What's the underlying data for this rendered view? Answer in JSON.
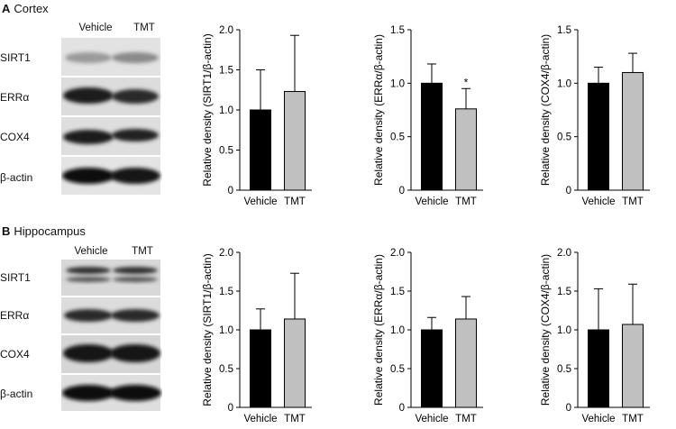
{
  "panels": [
    {
      "letter": "A",
      "title": "Cortex",
      "lanes": [
        "Vehicle",
        "TMT"
      ],
      "proteins": [
        "SIRT1",
        "ERRα",
        "COX4",
        "β-actin"
      ]
    },
    {
      "letter": "B",
      "title": "Hippocampus",
      "lanes": [
        "Vehicle",
        "TMT"
      ],
      "proteins": [
        "SIRT1",
        "ERRα",
        "COX4",
        "β-actin"
      ]
    }
  ],
  "colors": {
    "vehicle": "#000000",
    "tmt": "#c0c0c0"
  },
  "chart_data": [
    {
      "type": "bar",
      "panel": "A",
      "categories": [
        "Vehicle",
        "TMT"
      ],
      "values": [
        1.0,
        1.23
      ],
      "errors": [
        0.5,
        0.7
      ],
      "ylabel": "Relative density (SIRT1/β-actin)",
      "ylim": [
        0,
        2.0
      ],
      "ticks": [
        "0",
        "0.5",
        "1.0",
        "1.5",
        "2.0"
      ],
      "annotations": [
        "",
        ""
      ]
    },
    {
      "type": "bar",
      "panel": "A",
      "categories": [
        "Vehicle",
        "TMT"
      ],
      "values": [
        1.0,
        0.76
      ],
      "errors": [
        0.18,
        0.19
      ],
      "ylabel": "Relative density (ERRα/β-actin)",
      "ylim": [
        0,
        1.5
      ],
      "ticks": [
        "0",
        "0.5",
        "1.0",
        "1.5"
      ],
      "annotations": [
        "",
        "*"
      ]
    },
    {
      "type": "bar",
      "panel": "A",
      "categories": [
        "Vehicle",
        "TMT"
      ],
      "values": [
        1.0,
        1.1
      ],
      "errors": [
        0.15,
        0.18
      ],
      "ylabel": "Relative density (COX4/β-actin)",
      "ylim": [
        0,
        1.5
      ],
      "ticks": [
        "0",
        "0.5",
        "1.0",
        "1.5"
      ],
      "annotations": [
        "",
        ""
      ]
    },
    {
      "type": "bar",
      "panel": "B",
      "categories": [
        "Vehicle",
        "TMT"
      ],
      "values": [
        1.0,
        1.14
      ],
      "errors": [
        0.27,
        0.59
      ],
      "ylabel": "Relative density (SIRT1/β-actin)",
      "ylim": [
        0,
        2.0
      ],
      "ticks": [
        "0",
        "0.5",
        "1.0",
        "1.5",
        "2.0"
      ],
      "annotations": [
        "",
        ""
      ]
    },
    {
      "type": "bar",
      "panel": "B",
      "categories": [
        "Vehicle",
        "TMT"
      ],
      "values": [
        1.0,
        1.14
      ],
      "errors": [
        0.16,
        0.29
      ],
      "ylabel": "Relative density (ERRα/β-actin)",
      "ylim": [
        0,
        2.0
      ],
      "ticks": [
        "0",
        "0.5",
        "1.0",
        "1.5",
        "2.0"
      ],
      "annotations": [
        "",
        ""
      ]
    },
    {
      "type": "bar",
      "panel": "B",
      "categories": [
        "Vehicle",
        "TMT"
      ],
      "values": [
        1.0,
        1.07
      ],
      "errors": [
        0.53,
        0.52
      ],
      "ylabel": "Relative density (COX4/β-actin)",
      "ylim": [
        0,
        2.0
      ],
      "ticks": [
        "0",
        "0.5",
        "1.0",
        "1.5",
        "2.0"
      ],
      "annotations": [
        "",
        ""
      ]
    }
  ]
}
